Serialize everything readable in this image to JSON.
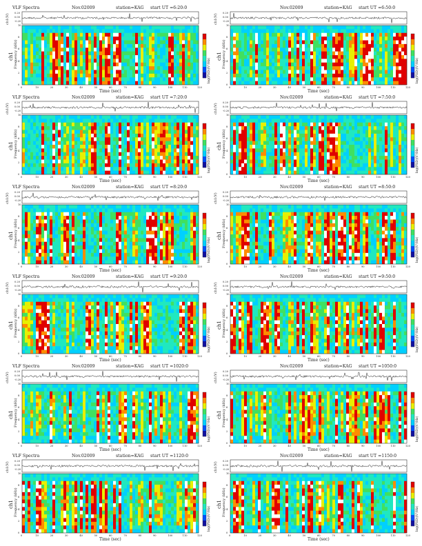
{
  "figure": {
    "chart_type": "spectrogram",
    "colormap": [
      "#1010a0",
      "#0050ff",
      "#00d0ff",
      "#20e8c0",
      "#40e060",
      "#e8f000",
      "#ff8c00",
      "#e00000",
      "#ffffff"
    ]
  },
  "panel_labels": {
    "title_left": "VLF Spectra",
    "date": "Nov.02009",
    "station": "station=KAG",
    "ch_label": "ch1(V)",
    "ch1_label": "ch1",
    "freq_label": "Frequency (kHz)",
    "xlabel": "Time (sec)",
    "cbar_label": "log(PSD)(V²/Hz)"
  },
  "panels": [
    {
      "start": "start UT =6:20:0",
      "xmax_label": "120",
      "col": 0,
      "row": 0,
      "xmax": 120
    },
    {
      "start": "start UT =6:50:0",
      "xmax_label": "120",
      "col": 1,
      "row": 0,
      "xmax": 120
    },
    {
      "start": "start UT =7:20:0",
      "xmax_label": "120",
      "col": 0,
      "row": 1,
      "xmax": 120
    },
    {
      "start": "start UT =7:50:0",
      "xmax_label": "120",
      "col": 1,
      "row": 1,
      "xmax": 120
    },
    {
      "start": "start UT =8:20:0",
      "xmax_label": "120",
      "col": 0,
      "row": 2,
      "xmax": 120
    },
    {
      "start": "start UT =8:50:0",
      "xmax_label": "120",
      "col": 1,
      "row": 2,
      "xmax": 120
    },
    {
      "start": "start UT =9:20:0",
      "xmax_label": "120",
      "col": 0,
      "row": 3,
      "xmax": 120
    },
    {
      "start": "start UT =9:50:0",
      "xmax_label": "120",
      "col": 1,
      "row": 3,
      "xmax": 120
    },
    {
      "start": "start UT =1020:0",
      "xmax_label": "120",
      "col": 0,
      "row": 4,
      "xmax": 120
    },
    {
      "start": "start UT =1050:0",
      "xmax_label": "120",
      "col": 1,
      "row": 4,
      "xmax": 120
    },
    {
      "start": "start UT =1120:0",
      "xmax_label": "120",
      "col": 0,
      "row": 5,
      "xmax": 120
    },
    {
      "start": "start UT =1150:0",
      "xmax_label": "120",
      "col": 1,
      "row": 5,
      "xmax": 120
    }
  ],
  "chart_data": {
    "type": "heatmap",
    "xlabel": "Time (sec)",
    "ylabel": "Frequency (kHz)",
    "x_ticks": [
      "0",
      "10",
      "20",
      "30",
      "40",
      "50",
      "60",
      "70",
      "80",
      "90",
      "100",
      "110",
      "120"
    ],
    "y_ticks": [
      "0",
      "2",
      "4",
      "6",
      "8",
      "10"
    ],
    "waveform_y_ticks": [
      "0.20",
      "0.00",
      "-0.20"
    ],
    "colorbar_label": "log(PSD)(V²/Hz)",
    "xlim": [
      0,
      120
    ],
    "ylim": [
      0,
      10
    ],
    "waveform_ylim": [
      -0.2,
      0.2
    ],
    "n_panels": 12,
    "layout": "6 rows x 2 columns"
  }
}
